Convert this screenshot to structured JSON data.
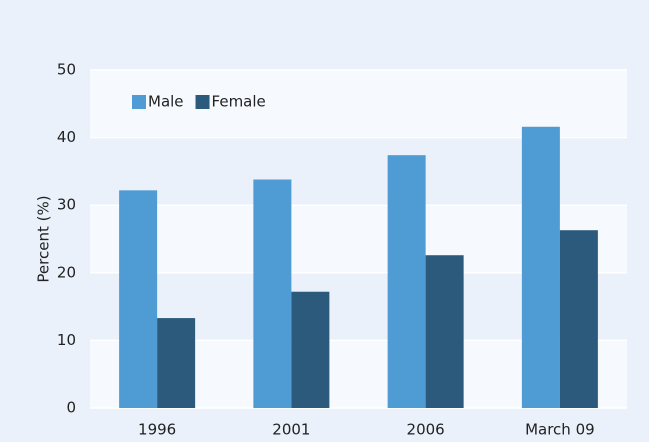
{
  "chart_data": {
    "type": "bar",
    "y_label": "Percent (%)",
    "categories": [
      "1996",
      "2001",
      "2006",
      "March 09"
    ],
    "series": [
      {
        "name": "Male",
        "color": "#4f9bd4",
        "values": [
          32.2,
          33.8,
          37.4,
          41.6
        ]
      },
      {
        "name": "Female",
        "color": "#2b5a7d",
        "values": [
          13.3,
          17.2,
          22.6,
          26.3
        ]
      }
    ],
    "ylim": [
      0,
      50
    ],
    "yticks": [
      0,
      10,
      20,
      30,
      40,
      50
    ],
    "grid": true,
    "legend": "top-left"
  }
}
